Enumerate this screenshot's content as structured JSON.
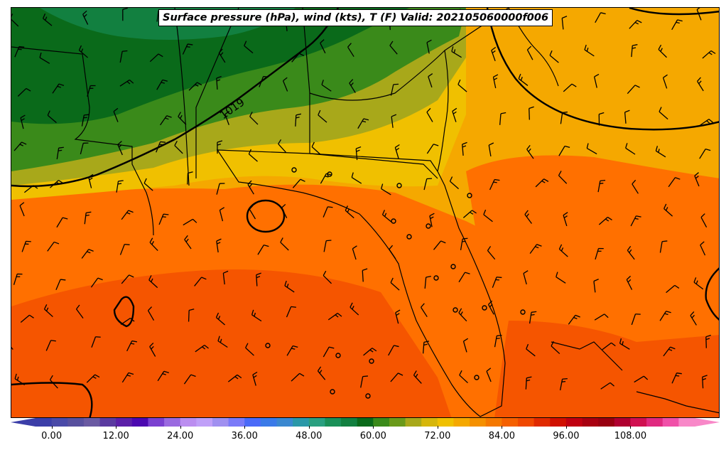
{
  "map": {
    "title": "Surface pressure (hPa), wind (kts), T (F) Valid: 202105060000f006",
    "isobar_label": "1019"
  },
  "colorbar": {
    "ticks": [
      "0.00",
      "12.00",
      "24.00",
      "36.00",
      "48.00",
      "60.00",
      "72.00",
      "84.00",
      "96.00",
      "108.00"
    ],
    "colors": [
      "#3b3ea8",
      "#4a4aa8",
      "#58509e",
      "#6a5aa2",
      "#5a3aa0",
      "#5b1fa8",
      "#4b08b0",
      "#7a40d0",
      "#9a6ae0",
      "#bb8ef0",
      "#c0a0f8",
      "#a090f0",
      "#7a7af8",
      "#4a6af8",
      "#3a7ae8",
      "#3a88d0",
      "#2a98a8",
      "#2aa080",
      "#1a9058",
      "#128040",
      "#0a6a1a",
      "#3a8a1a",
      "#6a9a1a",
      "#a8a81a",
      "#d6b60a",
      "#f0c000",
      "#f5a800",
      "#f59000",
      "#f57800",
      "#f56000",
      "#f04800",
      "#e02a00",
      "#d01000",
      "#c00010",
      "#a80010",
      "#980010",
      "#b00030",
      "#d01050",
      "#e02a80",
      "#f050a8",
      "#f888c8"
    ],
    "vmin": -3,
    "vmax": 120
  }
}
